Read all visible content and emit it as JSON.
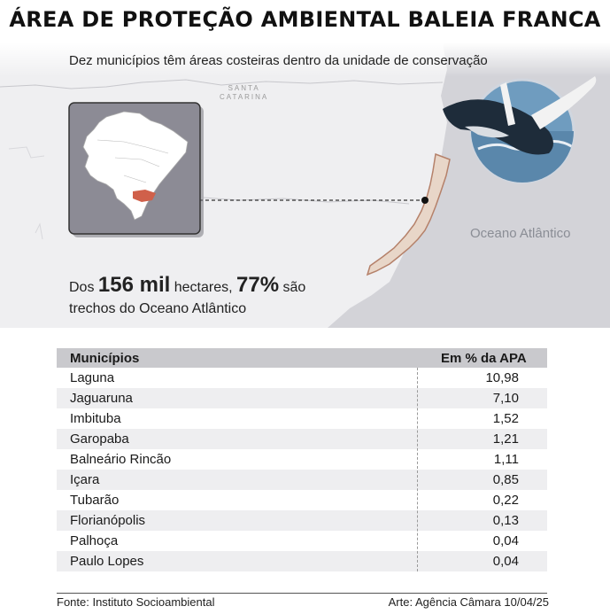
{
  "title": "ÁREA DE PROTEÇÃO AMBIENTAL BALEIA FRANCA",
  "subtitle": "Dez municípios têm áreas costeiras dentro da unidade de conservação",
  "map": {
    "state_label_line1": "SANTA",
    "state_label_line2": "CATARINA",
    "ocean_label": "Oceano Atlântico",
    "land_color": "#efeff1",
    "ocean_color": "#d3d3d8",
    "apa_color": "#e8d6c8",
    "apa_outline": "#b5816a",
    "inset_bg": "#8c8b95",
    "highlight_state_color": "#d0604a",
    "whale_icon": "whale-breaching-icon"
  },
  "stat": {
    "prefix": "Dos ",
    "hectares": "156 mil",
    "mid": " hectares, ",
    "percent": "77%",
    "suffix": " são",
    "line2": "trechos do Oceano Atlântico"
  },
  "table": {
    "headers": [
      "Municípios",
      "Em % da APA"
    ],
    "rows": [
      [
        "Laguna",
        "10,98"
      ],
      [
        "Jaguaruna",
        "7,10"
      ],
      [
        "Imbituba",
        "1,52"
      ],
      [
        "Garopaba",
        "1,21"
      ],
      [
        "Balneário Rincão",
        "1,11"
      ],
      [
        "Içara",
        "0,85"
      ],
      [
        "Tubarão",
        "0,22"
      ],
      [
        "Florianópolis",
        "0,13"
      ],
      [
        "Palhoça",
        "0,04"
      ],
      [
        "Paulo Lopes",
        "0,04"
      ]
    ]
  },
  "footer": {
    "source": "Fonte: Instituto Socioambiental",
    "credit": "Arte: Agência Câmara 10/04/25"
  }
}
